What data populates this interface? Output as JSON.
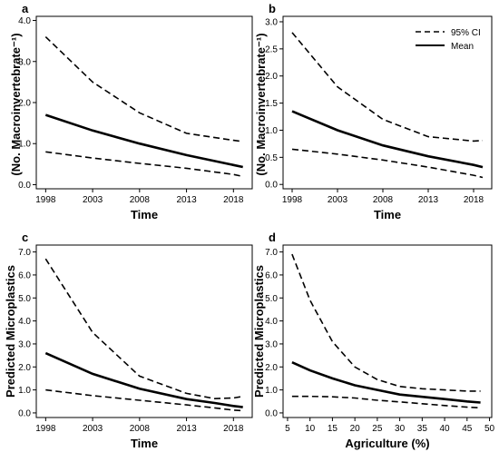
{
  "figure": {
    "ylabels": {
      "top": "(No. Macroinvertebrate⁻¹)",
      "bottom": "Predicted Microplastics"
    }
  },
  "legend": {
    "ci_label": "95% CI",
    "mean_label": "Mean"
  },
  "chart_data": [
    {
      "panel": "a",
      "type": "line",
      "xlabel": "Time",
      "xlim": [
        1997,
        2020
      ],
      "ylim": [
        -0.1,
        4.1
      ],
      "xticks": [
        "1998",
        "2003",
        "2008",
        "2013",
        "2018"
      ],
      "yticks": [
        "0.0",
        "1.0",
        "2.0",
        "3.0",
        "4.0"
      ],
      "x": [
        1998,
        2003,
        2008,
        2013,
        2018,
        2019
      ],
      "series": [
        {
          "name": "95% CI",
          "role": "upper",
          "values": [
            3.6,
            2.5,
            1.75,
            1.25,
            1.08,
            1.05
          ]
        },
        {
          "name": "Mean",
          "role": "mean",
          "values": [
            1.7,
            1.32,
            1.0,
            0.72,
            0.48,
            0.43
          ]
        },
        {
          "name": "95% CI",
          "role": "lower",
          "values": [
            0.8,
            0.65,
            0.52,
            0.4,
            0.25,
            0.2
          ]
        }
      ]
    },
    {
      "panel": "b",
      "type": "line",
      "xlabel": "Time",
      "xlim": [
        1997,
        2020
      ],
      "ylim": [
        -0.08,
        3.1
      ],
      "xticks": [
        "1998",
        "2003",
        "2008",
        "2013",
        "2018"
      ],
      "yticks": [
        "0.0",
        "0.5",
        "1.0",
        "1.5",
        "2.0",
        "2.5",
        "3.0"
      ],
      "x": [
        1998,
        2003,
        2008,
        2013,
        2018,
        2019
      ],
      "series": [
        {
          "name": "95% CI",
          "role": "upper",
          "values": [
            2.8,
            1.8,
            1.2,
            0.88,
            0.8,
            0.81
          ]
        },
        {
          "name": "Mean",
          "role": "mean",
          "values": [
            1.35,
            1.0,
            0.72,
            0.52,
            0.36,
            0.32
          ]
        },
        {
          "name": "95% CI",
          "role": "lower",
          "values": [
            0.65,
            0.56,
            0.45,
            0.32,
            0.17,
            0.13
          ]
        }
      ]
    },
    {
      "panel": "c",
      "type": "line",
      "xlabel": "Time",
      "xlim": [
        1997,
        2020
      ],
      "ylim": [
        -0.2,
        7.3
      ],
      "xticks": [
        "1998",
        "2003",
        "2008",
        "2013",
        "2018"
      ],
      "yticks": [
        "0.0",
        "1.0",
        "2.0",
        "3.0",
        "4.0",
        "5.0",
        "6.0",
        "7.0"
      ],
      "x": [
        1998,
        2003,
        2008,
        2013,
        2016,
        2018,
        2019
      ],
      "series": [
        {
          "name": "95% CI",
          "role": "upper",
          "values": [
            6.7,
            3.5,
            1.6,
            0.85,
            0.62,
            0.65,
            0.72
          ]
        },
        {
          "name": "Mean",
          "role": "mean",
          "values": [
            2.6,
            1.7,
            1.05,
            0.6,
            0.43,
            0.3,
            0.25
          ]
        },
        {
          "name": "95% CI",
          "role": "lower",
          "values": [
            1.0,
            0.75,
            0.55,
            0.35,
            0.22,
            0.12,
            0.1
          ]
        }
      ]
    },
    {
      "panel": "d",
      "type": "line",
      "xlabel": "Agriculture (%)",
      "xlim": [
        4,
        50.5
      ],
      "ylim": [
        -0.2,
        7.3
      ],
      "xticks": [
        "5",
        "10",
        "15",
        "20",
        "25",
        "30",
        "35",
        "40",
        "45",
        "50"
      ],
      "yticks": [
        "0.0",
        "1.0",
        "2.0",
        "3.0",
        "4.0",
        "5.0",
        "6.0",
        "7.0"
      ],
      "x": [
        6,
        10,
        15,
        20,
        25,
        30,
        35,
        40,
        45,
        48
      ],
      "series": [
        {
          "name": "95% CI",
          "role": "upper",
          "values": [
            6.9,
            4.9,
            3.1,
            2.0,
            1.45,
            1.15,
            1.05,
            1.0,
            0.95,
            0.95
          ]
        },
        {
          "name": "Mean",
          "role": "mean",
          "values": [
            2.2,
            1.85,
            1.5,
            1.2,
            1.0,
            0.8,
            0.7,
            0.6,
            0.5,
            0.45
          ]
        },
        {
          "name": "95% CI",
          "role": "lower",
          "values": [
            0.72,
            0.72,
            0.7,
            0.65,
            0.55,
            0.48,
            0.4,
            0.32,
            0.25,
            0.22
          ]
        }
      ]
    }
  ]
}
